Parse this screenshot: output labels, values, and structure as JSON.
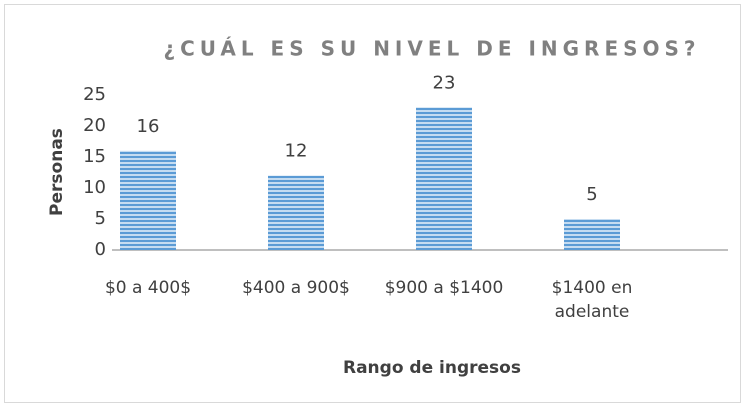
{
  "chart_data": {
    "type": "bar",
    "title": "¿CUÁL ES SU NIVEL DE INGRESOS?",
    "x_label": "Rango de ingresos",
    "y_label": "Personas",
    "categories": [
      "$0 a 400$",
      "$400 a 900$",
      "$900 a $1400",
      "$1400 en adelante"
    ],
    "values": [
      16,
      12,
      23,
      5
    ],
    "color": "#5b9bd5",
    "ylim": [
      0,
      25
    ],
    "yticks": [
      0,
      5,
      10,
      15,
      20,
      25
    ],
    "grid": false
  }
}
